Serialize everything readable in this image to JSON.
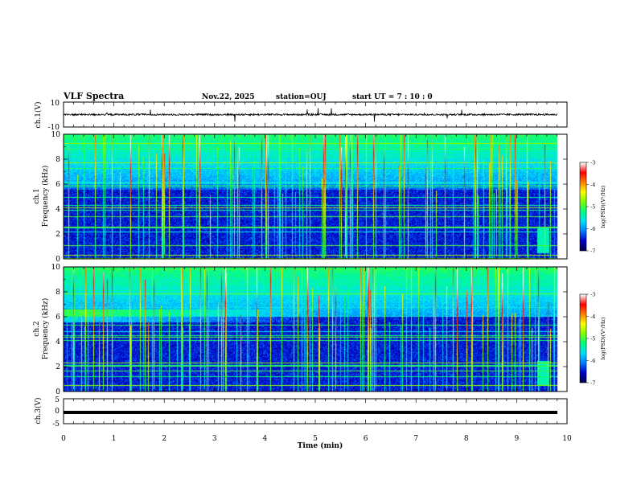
{
  "header": {
    "title": "VLF Spectra",
    "date": "Nov.22, 2025",
    "station": "station=OUJ",
    "start_ut": "start UT =  7 : 10 : 0"
  },
  "chart_data": [
    {
      "type": "line",
      "panel": "ch1-waveform",
      "ylabel": "ch.1(V)",
      "ylim": [
        -10,
        10
      ],
      "yticks": [
        "10",
        "-10"
      ],
      "xlim": [
        0,
        10
      ],
      "approx_level": 0,
      "description": "broadband waveform"
    },
    {
      "type": "heatmap",
      "panel": "ch1-spectrogram",
      "ylabel_top": "ch.1",
      "ylabel": "Frequency (kHz)",
      "ylim": [
        0,
        10
      ],
      "yticks": [
        "0",
        "2",
        "4",
        "6",
        "8",
        "10"
      ],
      "xlim": [
        0,
        10
      ],
      "colorbar": {
        "label": "log(PSD)(V²/Hz)",
        "range": [
          -7,
          -3
        ],
        "ticks": [
          "-3",
          "-4",
          "-5",
          "-6",
          "-7"
        ],
        "colors": [
          "#000050",
          "#0000d0",
          "#0080ff",
          "#00e0ff",
          "#00ff80",
          "#80ff00",
          "#ffff00",
          "#ff8000",
          "#ff0000",
          "#ffffff"
        ]
      }
    },
    {
      "type": "heatmap",
      "panel": "ch2-spectrogram",
      "ylabel_top": "ch.2",
      "ylabel": "Frequency (kHz)",
      "ylim": [
        0,
        10
      ],
      "yticks": [
        "0",
        "2",
        "4",
        "6",
        "8",
        "10"
      ],
      "xlim": [
        0,
        10
      ],
      "colorbar": {
        "label": "log(PSD)(V²/Hz)",
        "range": [
          -7,
          -3
        ],
        "ticks": [
          "-3",
          "-4",
          "-5",
          "-6",
          "-7"
        ],
        "colors": [
          "#000050",
          "#0000d0",
          "#0080ff",
          "#00e0ff",
          "#00ff80",
          "#80ff00",
          "#ffff00",
          "#ff8000",
          "#ff0000",
          "#ffffff"
        ]
      }
    },
    {
      "type": "line",
      "panel": "ch3-waveform",
      "ylabel": "ch.3(V)",
      "ylim": [
        -5,
        5
      ],
      "yticks": [
        "5",
        "0",
        "-5"
      ],
      "xlim": [
        0,
        10
      ],
      "approx_level": -0.5
    }
  ],
  "xaxis": {
    "label": "Time (min)",
    "ticks": [
      "0",
      "1",
      "2",
      "3",
      "4",
      "5",
      "6",
      "7",
      "8",
      "9",
      "10"
    ]
  }
}
